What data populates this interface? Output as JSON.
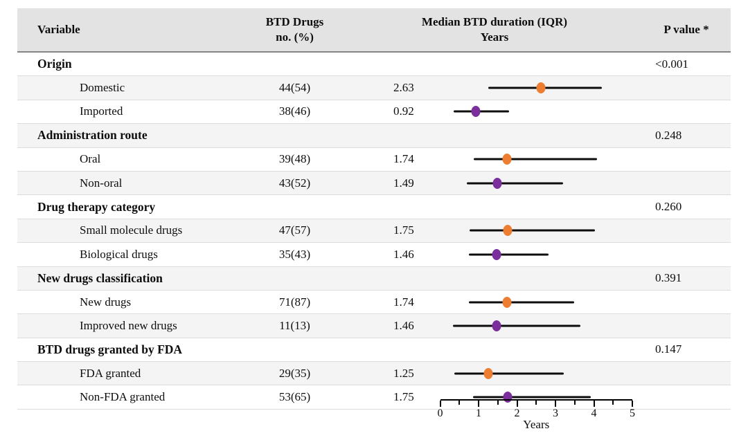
{
  "figure": {
    "columns": {
      "variable": "Variable",
      "n_line1": "BTD Drugs",
      "n_line2": "no. (%)",
      "duration_line1": "Median BTD duration (IQR)",
      "duration_line2": "Years",
      "p": "P value *"
    },
    "colors": {
      "orange": "#ED7D31",
      "purple": "#7A2F9C",
      "header_bg": "#E3E3E3",
      "row_shade": "#F4F4F4",
      "row_border": "#DCDCDC",
      "header_border": "#848484",
      "whisker": "#0D0D0D",
      "axis": "#000000"
    }
  },
  "chart_data": {
    "type": "forest",
    "title": "Median BTD duration (IQR) in years by drug subgroup",
    "xlabel": "Years",
    "xlim": [
      0,
      5
    ],
    "xticks": [
      "0",
      "1",
      "2",
      "3",
      "4",
      "5"
    ],
    "xtick_values": [
      0,
      1,
      2,
      3,
      4,
      5
    ],
    "minor_tick_values": [
      0.5,
      1.5,
      2.5,
      3.5,
      4.5
    ],
    "legend": "none",
    "grid": "off",
    "groups": [
      {
        "variable": "Origin",
        "p_value": "<0.001",
        "items": [
          {
            "label": "Domestic",
            "n_pct": "44(54)",
            "median": 2.63,
            "iqr": [
              1.25,
              4.2
            ],
            "dot_color": "#ED7D31"
          },
          {
            "label": "Imported",
            "n_pct": "38(46)",
            "median": 0.92,
            "iqr": [
              0.35,
              1.8
            ],
            "dot_color": "#7A2F9C"
          }
        ]
      },
      {
        "variable": "Administration route",
        "p_value": "0.248",
        "items": [
          {
            "label": "Oral",
            "n_pct": "39(48)",
            "median": 1.74,
            "iqr": [
              0.87,
              4.09
            ],
            "dot_color": "#ED7D31"
          },
          {
            "label": "Non-oral",
            "n_pct": "43(52)",
            "median": 1.49,
            "iqr": [
              0.69,
              3.19
            ],
            "dot_color": "#7A2F9C"
          }
        ]
      },
      {
        "variable": "Drug therapy category",
        "p_value": "0.260",
        "items": [
          {
            "label": "Small molecule drugs",
            "n_pct": "47(57)",
            "median": 1.75,
            "iqr": [
              0.76,
              4.02
            ],
            "dot_color": "#ED7D31"
          },
          {
            "label": "Biological drugs",
            "n_pct": "35(43)",
            "median": 1.46,
            "iqr": [
              0.75,
              2.82
            ],
            "dot_color": "#7A2F9C"
          }
        ]
      },
      {
        "variable": "New drugs classification",
        "p_value": "0.391",
        "items": [
          {
            "label": "New drugs",
            "n_pct": "71(87)",
            "median": 1.74,
            "iqr": [
              0.75,
              3.48
            ],
            "dot_color": "#ED7D31"
          },
          {
            "label": "Improved new drugs",
            "n_pct": "11(13)",
            "median": 1.46,
            "iqr": [
              0.34,
              3.65
            ],
            "dot_color": "#7A2F9C"
          }
        ]
      },
      {
        "variable": "BTD drugs granted by FDA",
        "p_value": "0.147",
        "items": [
          {
            "label": "FDA granted",
            "n_pct": "29(35)",
            "median": 1.25,
            "iqr": [
              0.37,
              3.21
            ],
            "dot_color": "#ED7D31"
          },
          {
            "label": "Non-FDA granted",
            "n_pct": "53(65)",
            "median": 1.75,
            "iqr": [
              0.86,
              3.92
            ],
            "dot_color": "#7A2F9C"
          }
        ]
      }
    ]
  }
}
